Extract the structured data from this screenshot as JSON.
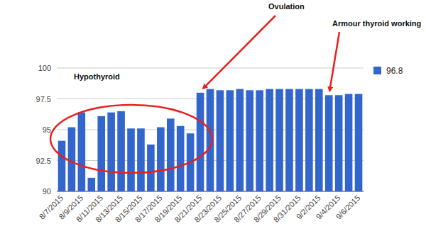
{
  "chart_data": {
    "type": "bar",
    "categories": [
      "8/7/2015",
      null,
      "8/9/2015",
      null,
      "8/11/2015",
      null,
      "8/13/2015",
      null,
      "8/15/2015",
      null,
      "8/17/2015",
      null,
      "8/19/2015",
      null,
      "8/21/2015",
      null,
      "8/23/2015",
      null,
      "8/25/2015",
      null,
      "8/27/2015",
      null,
      "8/29/2015",
      null,
      "8/31/2015",
      null,
      "9/2/2015",
      null,
      "9/4/2015",
      null,
      "9/6/2015"
    ],
    "series": [
      {
        "name": "96.8",
        "color": "#3366cc",
        "values": [
          94.1,
          95.2,
          96.4,
          91.1,
          96.1,
          96.4,
          96.5,
          95.1,
          95.1,
          93.8,
          95.2,
          95.9,
          95.3,
          94.7,
          98.0,
          98.3,
          98.2,
          98.2,
          98.3,
          98.2,
          98.2,
          98.3,
          98.3,
          98.3,
          98.3,
          98.3,
          98.3,
          97.8,
          97.8,
          97.9,
          97.9
        ]
      }
    ],
    "ylim": [
      90,
      100
    ],
    "yticks": [
      90,
      92.5,
      95,
      97.5,
      100
    ],
    "grid": true,
    "legend": "right",
    "annotations": [
      {
        "text": "Hypothyroid"
      },
      {
        "text": "Ovulation"
      },
      {
        "text": "Armour thyroid working"
      }
    ]
  }
}
